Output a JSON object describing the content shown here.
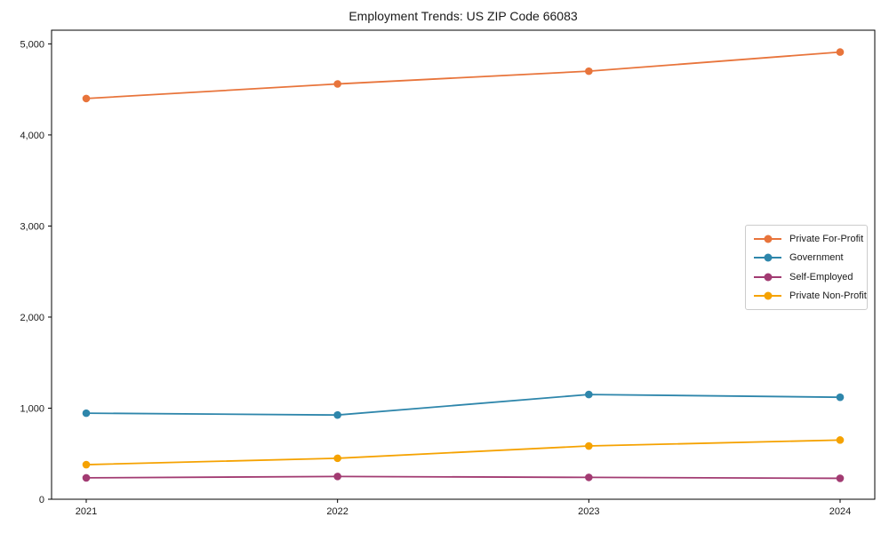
{
  "chart_data": {
    "type": "line",
    "title": "Employment Trends: US ZIP Code 66083",
    "categories": [
      "2021",
      "2022",
      "2023",
      "2024"
    ],
    "series": [
      {
        "name": "Private For-Profit",
        "color": "#E8743B",
        "values": [
          4400,
          4560,
          4700,
          4910
        ]
      },
      {
        "name": "Government",
        "color": "#2E86AB",
        "values": [
          945,
          925,
          1150,
          1120
        ]
      },
      {
        "name": "Self-Employed",
        "color": "#A23B72",
        "values": [
          235,
          250,
          240,
          230
        ]
      },
      {
        "name": "Private Non-Profit",
        "color": "#F5A201",
        "values": [
          380,
          450,
          585,
          650
        ]
      }
    ],
    "xlabel": "",
    "ylabel": "",
    "ylim": [
      0,
      5150
    ],
    "yticks": [
      0,
      1000,
      2000,
      3000,
      4000,
      5000
    ],
    "ytick_labels": [
      "0",
      "1,000",
      "2,000",
      "3,000",
      "4,000",
      "5,000"
    ],
    "grid": false,
    "legend_position": "center-right",
    "marker": "circle",
    "axis_color": "#000000",
    "legend_border_color": "#cccccc"
  }
}
